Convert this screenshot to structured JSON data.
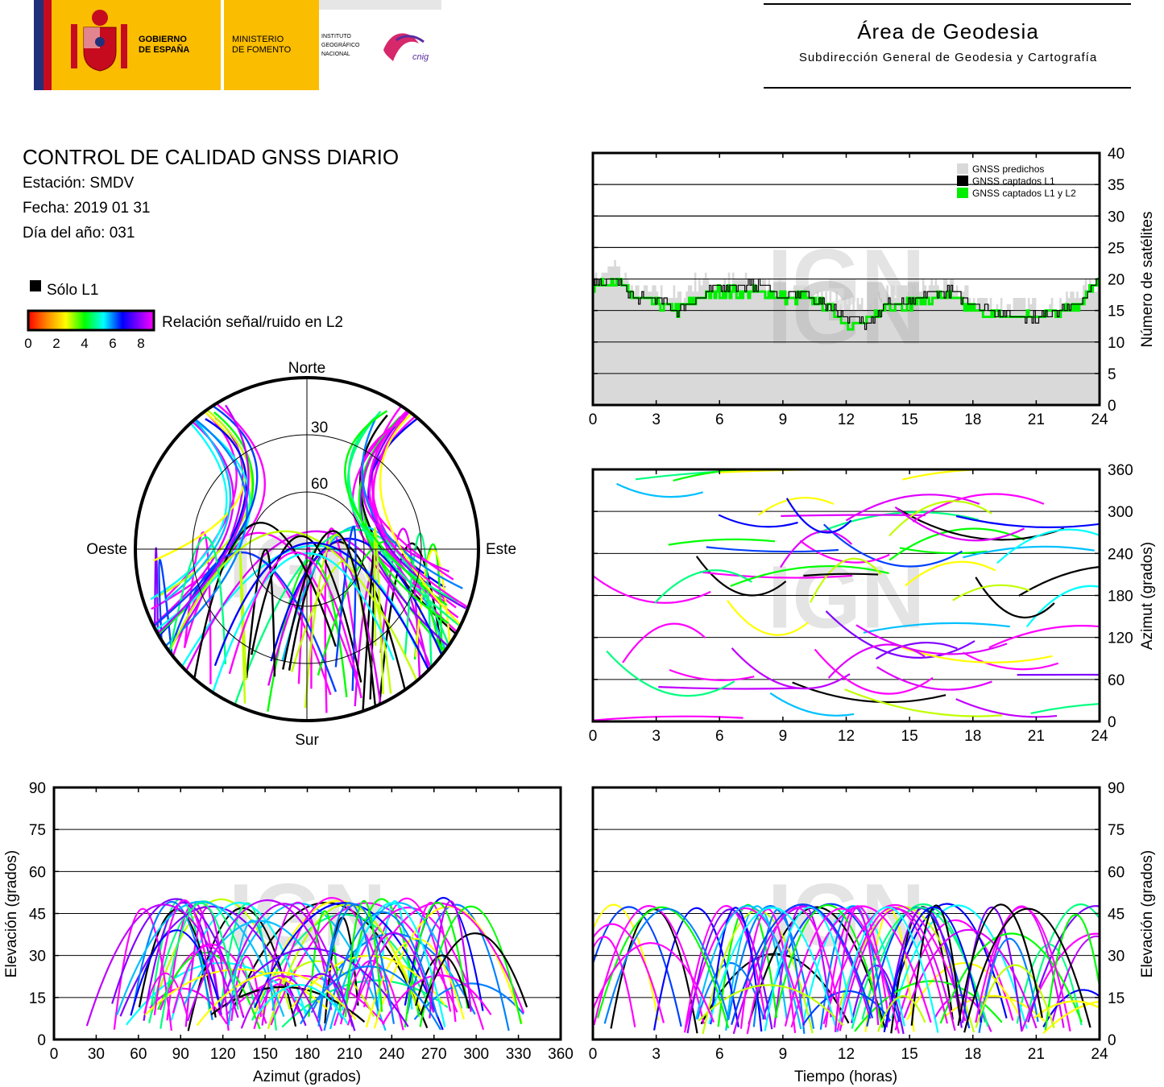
{
  "header": {
    "gov_line1": "GOBIERNO",
    "gov_line2": "DE ESPAÑA",
    "ministry_line1": "MINISTERIO",
    "ministry_line2": "DE FOMENTO",
    "ign_line1": "INSTITUTO",
    "ign_line2": "GEOGRÁFICO",
    "ign_line3": "NACIONAL",
    "cnig": "cnig",
    "area_title": "Área de Geodesia",
    "area_subtitle": "Subdirección General de Geodesia y Cartografía"
  },
  "report": {
    "title": "CONTROL DE CALIDAD GNSS DIARIO",
    "station": "Estación: SMDV",
    "date": "Fecha: 2019 01 31",
    "doy": "Día del año: 031"
  },
  "legend": {
    "only_l1": "Sólo L1",
    "snr_label": "Relación señal/ruido en L2",
    "snr_ticks": [
      "0",
      "2",
      "4",
      "6",
      "8"
    ]
  },
  "colors": {
    "predicted": "#d9d9d9",
    "captured_l1": "#000000",
    "captured_l1l2": "#00ee00",
    "snr_high": "#ff00ff",
    "watermark": "#cfcfcf"
  },
  "watermark": "IGN",
  "chart_data": [
    {
      "type": "area",
      "id": "satellites",
      "ylabel": "Número de satélites",
      "xlim": [
        0,
        24
      ],
      "ylim": [
        0,
        40
      ],
      "xticks": [
        "0",
        "3",
        "6",
        "9",
        "12",
        "15",
        "18",
        "21",
        "24"
      ],
      "yticks": [
        "0",
        "5",
        "10",
        "15",
        "20",
        "25",
        "30",
        "35",
        "40"
      ],
      "grid": true,
      "legend_position": "top-right",
      "series": [
        {
          "name": "GNSS predichos",
          "x": [
            0,
            1,
            2,
            3,
            4,
            5,
            6,
            7,
            8,
            9,
            10,
            11,
            12,
            13,
            14,
            15,
            16,
            17,
            18,
            19,
            20,
            21,
            22,
            23,
            24
          ],
          "values": [
            20,
            22,
            18,
            18,
            17,
            20,
            19,
            20,
            19,
            18,
            18,
            17,
            16,
            16,
            18,
            18,
            19,
            19,
            17,
            16,
            16,
            16,
            16,
            18,
            19
          ]
        },
        {
          "name": "GNSS captados L1",
          "x": [
            0,
            1,
            2,
            3,
            4,
            5,
            6,
            7,
            8,
            9,
            10,
            11,
            12,
            13,
            14,
            15,
            16,
            17,
            18,
            19,
            20,
            21,
            22,
            23,
            24
          ],
          "values": [
            19,
            20,
            17,
            17,
            15,
            17,
            19,
            19,
            19,
            17,
            18,
            16,
            14,
            13,
            16,
            16,
            18,
            18,
            16,
            15,
            14,
            14,
            15,
            16,
            20
          ]
        },
        {
          "name": "GNSS captados L1 y L2",
          "x": [
            0,
            1,
            2,
            3,
            4,
            5,
            6,
            7,
            8,
            9,
            10,
            11,
            12,
            13,
            14,
            15,
            16,
            17,
            18,
            19,
            20,
            21,
            22,
            23,
            24
          ],
          "values": [
            19,
            20,
            17,
            16,
            15,
            17,
            18,
            18,
            18,
            17,
            17,
            16,
            13,
            13,
            16,
            16,
            17,
            17,
            15,
            14,
            14,
            14,
            15,
            16,
            20
          ]
        }
      ]
    },
    {
      "type": "scatter",
      "id": "skyplot",
      "compass": {
        "north": "Norte",
        "south": "Sur",
        "east": "Este",
        "west": "Oeste"
      },
      "elevation_rings": [
        "30",
        "60"
      ]
    },
    {
      "type": "scatter",
      "id": "azimuth-time",
      "ylabel": "Azimut (grados)",
      "xlim": [
        0,
        24
      ],
      "ylim": [
        0,
        360
      ],
      "xticks": [
        "0",
        "3",
        "6",
        "9",
        "12",
        "15",
        "18",
        "21",
        "24"
      ],
      "yticks": [
        "0",
        "60",
        "120",
        "180",
        "240",
        "300",
        "360"
      ],
      "grid": true
    },
    {
      "type": "scatter",
      "id": "elevation-azimuth",
      "xlabel": "Azimut (grados)",
      "ylabel": "Elevación (grados)",
      "xlim": [
        0,
        360
      ],
      "ylim": [
        0,
        90
      ],
      "xticks": [
        "0",
        "30",
        "60",
        "90",
        "120",
        "150",
        "180",
        "210",
        "240",
        "270",
        "300",
        "330",
        "360"
      ],
      "yticks": [
        "0",
        "15",
        "30",
        "45",
        "60",
        "75",
        "90"
      ],
      "grid": true
    },
    {
      "type": "scatter",
      "id": "elevation-time",
      "xlabel": "Tiempo (horas)",
      "ylabel": "Elevación (grados)",
      "xlim": [
        0,
        24
      ],
      "ylim": [
        0,
        90
      ],
      "xticks": [
        "0",
        "3",
        "6",
        "9",
        "12",
        "15",
        "18",
        "21",
        "24"
      ],
      "yticks": [
        "0",
        "15",
        "30",
        "45",
        "60",
        "75",
        "90"
      ],
      "grid": true
    }
  ]
}
